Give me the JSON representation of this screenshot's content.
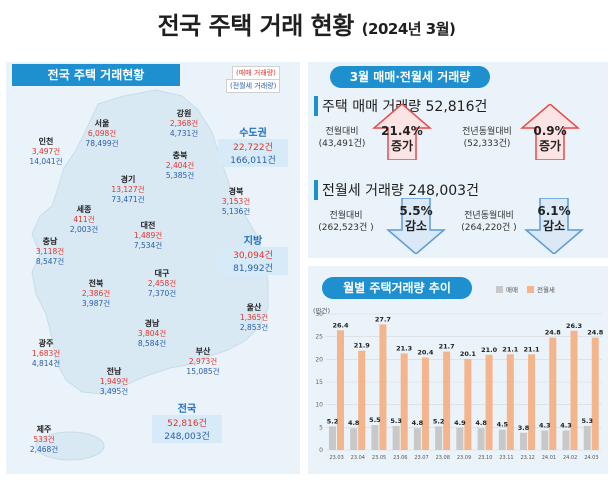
{
  "title": {
    "main": "전국 주택 거래 현황",
    "sub": "(2024년 3월)"
  },
  "left": {
    "header": "전국 주택 거래현황",
    "legend_sale": "(매매 거래량)",
    "legend_jeonse": "(전월세 거래량)",
    "regions": [
      {
        "name": "서울",
        "sale": "6,098건",
        "rent": "78,499건"
      },
      {
        "name": "강원",
        "sale": "2,368건",
        "rent": "4,731건"
      },
      {
        "name": "인천",
        "sale": "3,497건",
        "rent": "14,041건"
      },
      {
        "name": "경기",
        "sale": "13,127건",
        "rent": "73,471건"
      },
      {
        "name": "충북",
        "sale": "2,404건",
        "rent": "5,385건"
      },
      {
        "name": "세종",
        "sale": "411건",
        "rent": "2,003건"
      },
      {
        "name": "경북",
        "sale": "3,153건",
        "rent": "5,136건"
      },
      {
        "name": "대전",
        "sale": "1,489건",
        "rent": "7,534건"
      },
      {
        "name": "충남",
        "sale": "3,118건",
        "rent": "8,547건"
      },
      {
        "name": "대구",
        "sale": "2,458건",
        "rent": "7,370건"
      },
      {
        "name": "전북",
        "sale": "2,386건",
        "rent": "3,987건"
      },
      {
        "name": "울산",
        "sale": "1,365건",
        "rent": "2,853건"
      },
      {
        "name": "경남",
        "sale": "3,804건",
        "rent": "8,584건"
      },
      {
        "name": "광주",
        "sale": "1,683건",
        "rent": "4,814건"
      },
      {
        "name": "부산",
        "sale": "2,973건",
        "rent": "15,085건"
      },
      {
        "name": "전남",
        "sale": "1,949건",
        "rent": "3,495건"
      },
      {
        "name": "제주",
        "sale": "533건",
        "rent": "2,468건"
      }
    ],
    "capital": {
      "title": "수도권",
      "sale": "22,722건",
      "rent": "166,011건"
    },
    "local": {
      "title": "지방",
      "sale": "30,094건",
      "rent": "81,992건"
    },
    "nation": {
      "title": "전국",
      "sale": "52,816건",
      "rent": "248,003건"
    }
  },
  "right_top": {
    "header": "3월 매매·전월세 거래량",
    "sale_line": "주택 매매 거래량 52,816건",
    "rent_line": "전월세 거래량 248,003건",
    "sale_mom_label": "전월대비",
    "sale_mom_base": "(43,491건)",
    "sale_mom_value": "21.4%",
    "sale_mom_dir": "증가",
    "sale_yoy_label": "전년동월대비",
    "sale_yoy_base": "(52,333건)",
    "sale_yoy_value": "0.9%",
    "sale_yoy_dir": "증가",
    "rent_mom_label": "전월대비",
    "rent_mom_base": "(262,523건 )",
    "rent_mom_value": "5.5%",
    "rent_mom_dir": "감소",
    "rent_yoy_label": "전년동월대비",
    "rent_yoy_base": "(264,220건 )",
    "rent_yoy_value": "6.1%",
    "rent_yoy_dir": "감소",
    "up_color": "#e84b4b",
    "down_color": "#5b9bd5"
  },
  "right_bottom": {
    "header": "월별 주택거래량 추이"
  },
  "chart_data": {
    "type": "bar",
    "unit_label": "(만건)",
    "categories": [
      "23.03",
      "23.04",
      "23.05",
      "23.06",
      "23.07",
      "23.08",
      "23.09",
      "23.10",
      "23.11",
      "23.12",
      "24.01",
      "24.02",
      "24.03"
    ],
    "series": [
      {
        "name": "매매",
        "color": "#c8c8c8",
        "values": [
          5.2,
          4.8,
          5.5,
          5.3,
          4.8,
          5.2,
          4.9,
          4.8,
          4.5,
          3.8,
          4.3,
          4.3,
          5.3
        ]
      },
      {
        "name": "전월세",
        "color": "#f4b48c",
        "values": [
          26.4,
          21.9,
          27.7,
          21.3,
          20.4,
          21.7,
          20.1,
          21.0,
          21.1,
          21.1,
          24.8,
          26.3,
          24.8
        ]
      }
    ],
    "yticks": [
      0,
      5,
      10,
      15,
      20,
      25,
      30
    ],
    "ylim": [
      0,
      30
    ]
  }
}
